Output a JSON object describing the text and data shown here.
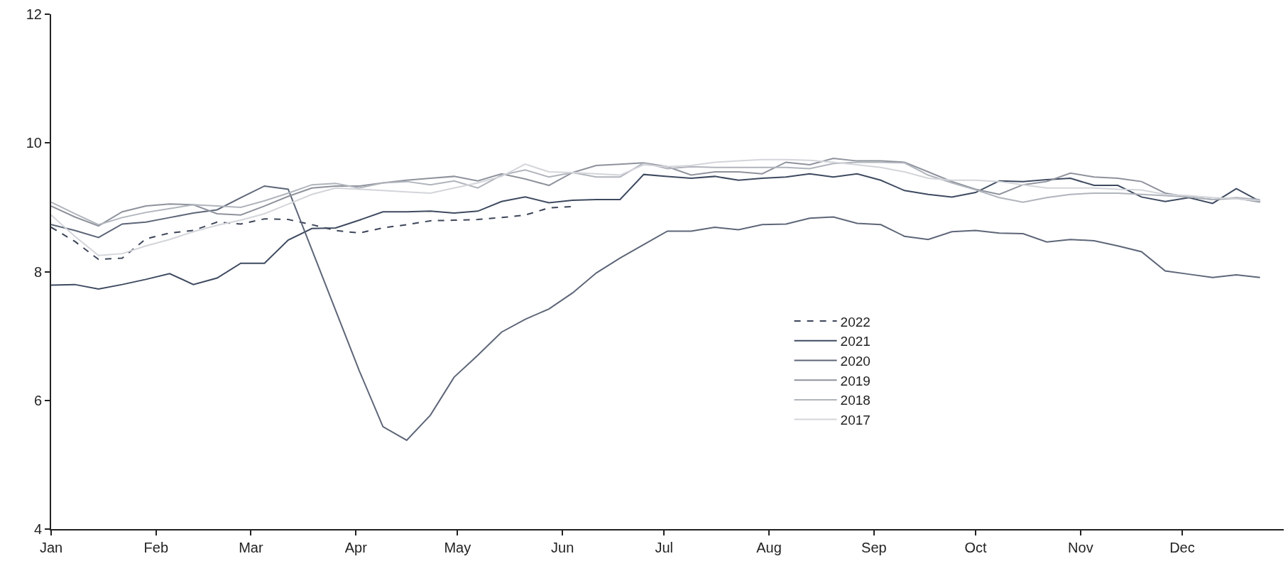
{
  "chart_data": {
    "type": "line",
    "x": [
      "--01-01",
      "--01-08",
      "--01-15",
      "--01-22",
      "--01-29",
      "--02-05",
      "--02-12",
      "--02-19",
      "--02-26",
      "--03-05",
      "--03-12",
      "--03-19",
      "--03-26",
      "--04-02",
      "--04-09",
      "--04-16",
      "--04-23",
      "--04-30",
      "--05-07",
      "--05-14",
      "--05-21",
      "--05-28",
      "--06-04",
      "--06-11",
      "--06-18",
      "--06-25",
      "--07-02",
      "--07-09",
      "--07-16",
      "--07-23",
      "--07-30",
      "--08-06",
      "--08-13",
      "--08-20",
      "--08-27",
      "--09-03",
      "--09-10",
      "--09-17",
      "--09-24",
      "--10-01",
      "--10-08",
      "--10-15",
      "--10-22",
      "--10-29",
      "--11-05",
      "--11-12",
      "--11-19",
      "--11-26",
      "--12-03",
      "--12-10",
      "--12-17",
      "--12-24"
    ],
    "xlim": [
      "--01-01",
      "--12-31"
    ],
    "xticks": [
      {
        "value": "--01-01",
        "label": "Jan"
      },
      {
        "value": "--02-01",
        "label": "Feb"
      },
      {
        "value": "--03-01",
        "label": "Mar"
      },
      {
        "value": "--04-01",
        "label": "Apr"
      },
      {
        "value": "--05-01",
        "label": "May"
      },
      {
        "value": "--06-01",
        "label": "Jun"
      },
      {
        "value": "--07-01",
        "label": "Jul"
      },
      {
        "value": "--08-01",
        "label": "Aug"
      },
      {
        "value": "--09-01",
        "label": "Sep"
      },
      {
        "value": "--10-01",
        "label": "Oct"
      },
      {
        "value": "--11-01",
        "label": "Nov"
      },
      {
        "value": "--12-01",
        "label": "Dec"
      }
    ],
    "ylim": [
      4,
      12
    ],
    "yticks": [
      4,
      6,
      8,
      10,
      12
    ],
    "legend": "bottom right",
    "marker": "none",
    "series": [
      {
        "name": "2022",
        "color": "#3d4559",
        "line_style": "dashed",
        "values": [
          8.69,
          8.47,
          8.19,
          8.21,
          8.51,
          8.6,
          8.64,
          8.77,
          8.74,
          8.82,
          8.81,
          8.73,
          8.64,
          8.6,
          8.68,
          8.73,
          8.79,
          8.8,
          8.81,
          8.84,
          8.88,
          8.99,
          9.01,
          null,
          null,
          null,
          null,
          null,
          null,
          null,
          null,
          null,
          null,
          null,
          null,
          null,
          null,
          null,
          null,
          null,
          null,
          null,
          null,
          null,
          null,
          null,
          null,
          null,
          null,
          null,
          null,
          null
        ]
      },
      {
        "name": "2021",
        "color": "#3e4a60",
        "line_style": "solid",
        "values": [
          7.79,
          7.8,
          7.73,
          7.8,
          7.88,
          7.97,
          7.8,
          7.9,
          8.13,
          8.13,
          8.49,
          8.67,
          8.68,
          8.8,
          8.93,
          8.93,
          8.94,
          8.91,
          8.94,
          9.09,
          9.16,
          9.07,
          9.11,
          9.12,
          9.12,
          9.51,
          9.48,
          9.45,
          9.48,
          9.42,
          9.45,
          9.47,
          9.52,
          9.47,
          9.52,
          9.42,
          9.26,
          9.2,
          9.16,
          9.23,
          9.41,
          9.4,
          9.43,
          9.45,
          9.34,
          9.34,
          9.16,
          9.09,
          9.15,
          9.06,
          9.29,
          9.09
        ]
      },
      {
        "name": "2020",
        "color": "#5d6678",
        "line_style": "solid",
        "values": [
          8.73,
          8.64,
          8.53,
          8.74,
          8.77,
          8.84,
          8.91,
          8.96,
          9.15,
          9.33,
          9.28,
          8.34,
          7.4,
          6.46,
          5.59,
          5.38,
          5.77,
          6.36,
          6.7,
          7.06,
          7.26,
          7.42,
          7.67,
          7.98,
          8.21,
          8.42,
          8.63,
          8.63,
          8.69,
          8.65,
          8.73,
          8.74,
          8.83,
          8.85,
          8.75,
          8.73,
          8.55,
          8.5,
          8.62,
          8.64,
          8.6,
          8.59,
          8.46,
          8.5,
          8.48,
          8.4,
          8.31,
          8.01,
          7.96,
          7.91,
          7.95,
          7.91
        ]
      },
      {
        "name": "2019",
        "color": "#8e929c",
        "line_style": "solid",
        "values": [
          9.02,
          8.85,
          8.71,
          8.93,
          9.02,
          9.05,
          9.04,
          8.9,
          8.88,
          9.02,
          9.17,
          9.3,
          9.33,
          9.33,
          9.38,
          9.42,
          9.45,
          9.48,
          9.41,
          9.52,
          9.44,
          9.34,
          9.54,
          9.65,
          9.67,
          9.69,
          9.63,
          9.5,
          9.55,
          9.55,
          9.52,
          9.7,
          9.66,
          9.76,
          9.72,
          9.72,
          9.7,
          9.55,
          9.4,
          9.28,
          9.2,
          9.35,
          9.4,
          9.53,
          9.47,
          9.45,
          9.4,
          9.22,
          9.16,
          9.12,
          9.14,
          9.08
        ]
      },
      {
        "name": "2018",
        "color": "#b0b4bc",
        "line_style": "solid",
        "values": [
          9.08,
          8.9,
          8.73,
          8.84,
          8.92,
          8.98,
          9.04,
          9.02,
          9.0,
          9.1,
          9.22,
          9.35,
          9.37,
          9.3,
          9.38,
          9.4,
          9.35,
          9.41,
          9.3,
          9.5,
          9.58,
          9.47,
          9.54,
          9.47,
          9.47,
          9.69,
          9.6,
          9.63,
          9.62,
          9.62,
          9.62,
          9.62,
          9.6,
          9.68,
          9.7,
          9.7,
          9.69,
          9.5,
          9.38,
          9.27,
          9.15,
          9.08,
          9.15,
          9.2,
          9.22,
          9.22,
          9.2,
          9.18,
          9.16,
          9.12,
          9.15,
          9.12
        ]
      },
      {
        "name": "2017",
        "color": "#d3d5da",
        "line_style": "solid",
        "values": [
          8.88,
          8.55,
          8.25,
          8.28,
          8.4,
          8.5,
          8.62,
          8.72,
          8.8,
          8.9,
          9.05,
          9.2,
          9.3,
          9.28,
          9.26,
          9.24,
          9.22,
          9.3,
          9.38,
          9.48,
          9.67,
          9.55,
          9.54,
          9.52,
          9.5,
          9.66,
          9.63,
          9.65,
          9.7,
          9.72,
          9.74,
          9.74,
          9.73,
          9.7,
          9.66,
          9.62,
          9.55,
          9.45,
          9.42,
          9.42,
          9.4,
          9.35,
          9.3,
          9.3,
          9.3,
          9.28,
          9.27,
          9.2,
          9.18,
          9.15,
          9.13,
          9.1
        ]
      }
    ]
  }
}
